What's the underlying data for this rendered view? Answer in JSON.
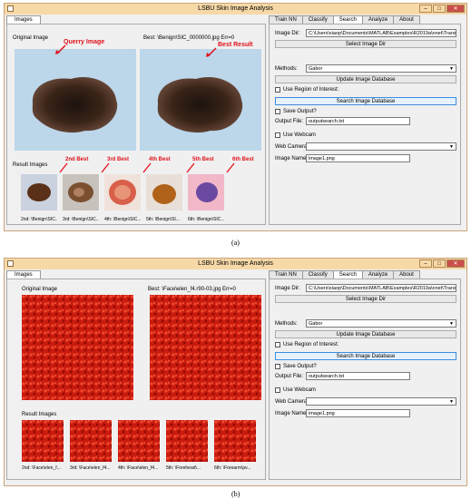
{
  "windows": [
    {
      "title": "LSBU Skin Image Analysis",
      "left_tab": "Images",
      "right_tabs": [
        "Train NN",
        "Classify",
        "Search",
        "Analyze",
        "About"
      ],
      "original_label": "Original Image",
      "best_label": "Best: \\Benign\\SIC_0000000.jpg Err=0",
      "result_label": "Result Images",
      "result_captions": [
        "2nd: \\Benign\\SIC...",
        "3rd: \\Benign\\SIC...",
        "4th: \\Benign\\SIC...",
        "5th: \\Benign\\SI...",
        "6th: \\Benign\\SIC..."
      ],
      "image_dir_label": "Image Dir:",
      "image_dir_value": "C:\\Users\\xiaop\\Documents\\MATLAB\\Examples\\R2019a\\nnet\\Transfe",
      "select_dir_button": "Select Image Dir",
      "methods_label": "Methods:",
      "method_value": "Gabor",
      "update_db_button": "Update Image Database",
      "roi_label": "Use Region of Interest:",
      "search_db_button": "Search Image Database",
      "save_output_label": "Save Output?",
      "output_file_label": "Output File:",
      "output_file_value": "outputsearch.txt",
      "use_webcam_label": "Use Webcam",
      "web_camera_label": "Web Camera",
      "image_name_label": "Image Name:",
      "image_name_value": "image1.png",
      "annotations": {
        "query": "Querry Image",
        "best": "Best Result",
        "ranks": [
          "2nd Best",
          "3rd Best",
          "4th Best",
          "5th Best",
          "6th Best"
        ]
      },
      "colors": {
        "titlebar": "#f7d9a8",
        "annotation": "#e0101a",
        "mole_background": "#bcd6ea"
      }
    },
    {
      "title": "LSBU Skin Image Analysis",
      "left_tab": "Images",
      "right_tabs": [
        "Train NN",
        "Classify",
        "Search",
        "Analyze",
        "About"
      ],
      "original_label": "Original Image",
      "best_label": "Best: \\Face\\elen_f4.r90-03.jpg Err=0",
      "result_label": "Result Images",
      "result_captions": [
        "2nd: \\Face\\elen_f...",
        "3rd: \\Face\\elen_f4...",
        "4th: \\Face\\elen_f4...",
        "5th: \\Forehead\\...",
        "6th: \\Forearm\\pv..."
      ],
      "image_dir_label": "Image Dir:",
      "image_dir_value": "C:\\Users\\xiaop\\Documents\\MATLAB\\Examples\\R2019a\\nnet\\Transfe",
      "select_dir_button": "Select Image Dir",
      "methods_label": "Methods:",
      "method_value": "Gabor",
      "update_db_button": "Update Image Database",
      "roi_label": "Use Region of Interest:",
      "search_db_button": "Search Image Database",
      "save_output_label": "Save Output?",
      "output_file_label": "Output File:",
      "output_file_value": "outputsearch.txt",
      "use_webcam_label": "Use Webcam",
      "web_camera_label": "Web Camera",
      "image_name_label": "Image Name:",
      "image_name_value": "image1.png",
      "colors": {
        "titlebar": "#f7d9a8",
        "texture": "#d41a10"
      }
    }
  ],
  "captions": [
    "(a)",
    "(b)"
  ]
}
